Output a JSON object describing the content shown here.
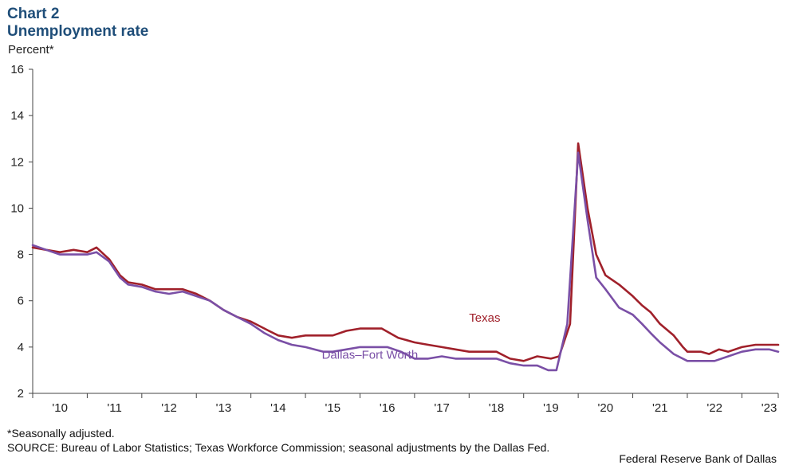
{
  "header": {
    "chart_label": "Chart 2",
    "title": "Unemployment rate",
    "y_unit": "Percent*"
  },
  "footer": {
    "footnote": "*Seasonally adjusted.",
    "source": "SOURCE: Bureau of Labor Statistics; Texas Workforce Commission; seasonal adjustments by the Dallas Fed.",
    "credit": "Federal Reserve Bank of Dallas"
  },
  "colors": {
    "texas": "#a0202a",
    "dfw": "#7a4fa6",
    "axis": "#444444",
    "title": "#1f4e79"
  },
  "chart_data": {
    "type": "line",
    "title": "Unemployment rate",
    "ylabel": "Percent*",
    "xlabel": "",
    "ylim": [
      2,
      16
    ],
    "yticks": [
      2,
      4,
      6,
      8,
      10,
      12,
      14,
      16
    ],
    "xlim": [
      2010.0,
      2023.667
    ],
    "xticks": [
      {
        "label": "'10",
        "x": 2010.5
      },
      {
        "label": "'11",
        "x": 2011.5
      },
      {
        "label": "'12",
        "x": 2012.5
      },
      {
        "label": "'13",
        "x": 2013.5
      },
      {
        "label": "'14",
        "x": 2014.5
      },
      {
        "label": "'15",
        "x": 2015.5
      },
      {
        "label": "'16",
        "x": 2016.5
      },
      {
        "label": "'17",
        "x": 2017.5
      },
      {
        "label": "'18",
        "x": 2018.5
      },
      {
        "label": "'19",
        "x": 2019.5
      },
      {
        "label": "'20",
        "x": 2020.5
      },
      {
        "label": "'21",
        "x": 2021.5
      },
      {
        "label": "'22",
        "x": 2022.5
      },
      {
        "label": "'23",
        "x": 2023.5
      }
    ],
    "annotations": [
      {
        "text": "Texas",
        "series": "Texas",
        "x": 2018.0,
        "y": 5.1
      },
      {
        "text": "Dallas–Fort Worth",
        "series": "Dallas–Fort Worth",
        "x": 2015.3,
        "y": 3.5
      }
    ],
    "series": [
      {
        "name": "Texas",
        "color": "#a0202a",
        "points": [
          [
            2010.0,
            8.3
          ],
          [
            2010.25,
            8.2
          ],
          [
            2010.5,
            8.1
          ],
          [
            2010.75,
            8.2
          ],
          [
            2011.0,
            8.1
          ],
          [
            2011.17,
            8.3
          ],
          [
            2011.4,
            7.8
          ],
          [
            2011.6,
            7.1
          ],
          [
            2011.75,
            6.8
          ],
          [
            2012.0,
            6.7
          ],
          [
            2012.25,
            6.5
          ],
          [
            2012.58,
            6.5
          ],
          [
            2012.75,
            6.5
          ],
          [
            2013.0,
            6.3
          ],
          [
            2013.25,
            6.0
          ],
          [
            2013.5,
            5.6
          ],
          [
            2013.75,
            5.3
          ],
          [
            2014.0,
            5.1
          ],
          [
            2014.33,
            4.7
          ],
          [
            2014.5,
            4.5
          ],
          [
            2014.75,
            4.4
          ],
          [
            2015.0,
            4.5
          ],
          [
            2015.33,
            4.5
          ],
          [
            2015.5,
            4.5
          ],
          [
            2015.75,
            4.7
          ],
          [
            2016.0,
            4.8
          ],
          [
            2016.4,
            4.8
          ],
          [
            2016.7,
            4.4
          ],
          [
            2017.0,
            4.2
          ],
          [
            2017.25,
            4.1
          ],
          [
            2017.5,
            4.0
          ],
          [
            2017.75,
            3.9
          ],
          [
            2018.0,
            3.8
          ],
          [
            2018.5,
            3.8
          ],
          [
            2018.75,
            3.5
          ],
          [
            2019.0,
            3.4
          ],
          [
            2019.25,
            3.6
          ],
          [
            2019.5,
            3.5
          ],
          [
            2019.65,
            3.6
          ],
          [
            2019.85,
            5.0
          ],
          [
            2020.0,
            12.8
          ],
          [
            2020.17,
            10.0
          ],
          [
            2020.33,
            8.0
          ],
          [
            2020.5,
            7.1
          ],
          [
            2020.75,
            6.7
          ],
          [
            2021.0,
            6.2
          ],
          [
            2021.17,
            5.8
          ],
          [
            2021.33,
            5.5
          ],
          [
            2021.5,
            5.0
          ],
          [
            2021.75,
            4.5
          ],
          [
            2021.92,
            4.0
          ],
          [
            2022.0,
            3.8
          ],
          [
            2022.25,
            3.8
          ],
          [
            2022.4,
            3.7
          ],
          [
            2022.58,
            3.9
          ],
          [
            2022.75,
            3.8
          ],
          [
            2023.0,
            4.0
          ],
          [
            2023.25,
            4.1
          ],
          [
            2023.667,
            4.1
          ]
        ]
      },
      {
        "name": "Dallas–Fort Worth",
        "color": "#7a4fa6",
        "points": [
          [
            2010.0,
            8.4
          ],
          [
            2010.25,
            8.2
          ],
          [
            2010.5,
            8.0
          ],
          [
            2010.75,
            8.0
          ],
          [
            2011.0,
            8.0
          ],
          [
            2011.17,
            8.1
          ],
          [
            2011.4,
            7.7
          ],
          [
            2011.6,
            7.0
          ],
          [
            2011.75,
            6.7
          ],
          [
            2012.0,
            6.6
          ],
          [
            2012.25,
            6.4
          ],
          [
            2012.5,
            6.3
          ],
          [
            2012.75,
            6.4
          ],
          [
            2013.0,
            6.2
          ],
          [
            2013.25,
            6.0
          ],
          [
            2013.5,
            5.6
          ],
          [
            2013.75,
            5.3
          ],
          [
            2014.0,
            5.0
          ],
          [
            2014.25,
            4.6
          ],
          [
            2014.5,
            4.3
          ],
          [
            2014.75,
            4.1
          ],
          [
            2015.0,
            4.0
          ],
          [
            2015.33,
            3.8
          ],
          [
            2015.5,
            3.8
          ],
          [
            2015.75,
            3.9
          ],
          [
            2016.0,
            4.0
          ],
          [
            2016.5,
            4.0
          ],
          [
            2016.75,
            3.8
          ],
          [
            2017.0,
            3.5
          ],
          [
            2017.25,
            3.5
          ],
          [
            2017.5,
            3.6
          ],
          [
            2017.75,
            3.5
          ],
          [
            2018.0,
            3.5
          ],
          [
            2018.5,
            3.5
          ],
          [
            2018.75,
            3.3
          ],
          [
            2019.0,
            3.2
          ],
          [
            2019.25,
            3.2
          ],
          [
            2019.45,
            3.0
          ],
          [
            2019.6,
            3.0
          ],
          [
            2019.8,
            5.0
          ],
          [
            2020.0,
            12.4
          ],
          [
            2020.17,
            9.5
          ],
          [
            2020.33,
            7.0
          ],
          [
            2020.5,
            6.5
          ],
          [
            2020.75,
            5.7
          ],
          [
            2021.0,
            5.4
          ],
          [
            2021.17,
            5.0
          ],
          [
            2021.33,
            4.6
          ],
          [
            2021.5,
            4.2
          ],
          [
            2021.75,
            3.7
          ],
          [
            2022.0,
            3.4
          ],
          [
            2022.25,
            3.4
          ],
          [
            2022.5,
            3.4
          ],
          [
            2022.75,
            3.6
          ],
          [
            2023.0,
            3.8
          ],
          [
            2023.25,
            3.9
          ],
          [
            2023.5,
            3.9
          ],
          [
            2023.667,
            3.8
          ]
        ]
      }
    ]
  }
}
